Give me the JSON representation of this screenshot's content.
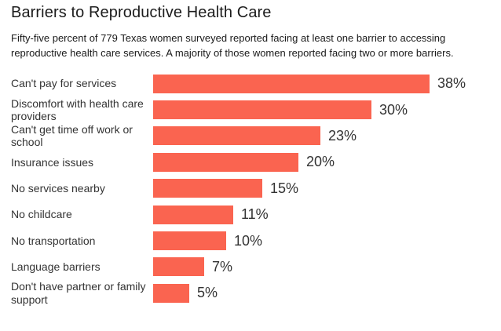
{
  "header": {
    "title": "Barriers to Reproductive Health Care",
    "subtitle": "Fifty-five percent of 779 Texas women surveyed reported facing at least one barrier to accessing reproductive health care services. A majority of those women reported facing two or more barriers."
  },
  "chart_data": {
    "type": "bar",
    "orientation": "horizontal",
    "title": "Barriers to Reproductive Health Care",
    "subtitle": "Fifty-five percent of 779 Texas women surveyed reported facing at least one barrier to accessing reproductive health care services. A majority of those women reported facing two or more barriers.",
    "categories": [
      "Can't pay for services",
      "Discomfort with health care providers",
      "Can't get time off work or school",
      "Insurance issues",
      "No services nearby",
      "No childcare",
      "No transportation",
      "Language barriers",
      "Don't have partner or family support"
    ],
    "values": [
      38,
      30,
      23,
      20,
      15,
      11,
      10,
      7,
      5
    ],
    "value_labels": [
      "38%",
      "30%",
      "23%",
      "20%",
      "15%",
      "11%",
      "10%",
      "7%",
      "5%"
    ],
    "unit": "percent",
    "xlabel": "",
    "ylabel": "",
    "xlim": [
      0,
      41
    ],
    "grid": false,
    "legend": false,
    "axis_ticks_visible": false,
    "bar_color": "#fa6450",
    "category_label_color": "#333333",
    "value_label_color": "#333333",
    "title_color": "#1c1c1c",
    "background_color": "#ffffff"
  }
}
